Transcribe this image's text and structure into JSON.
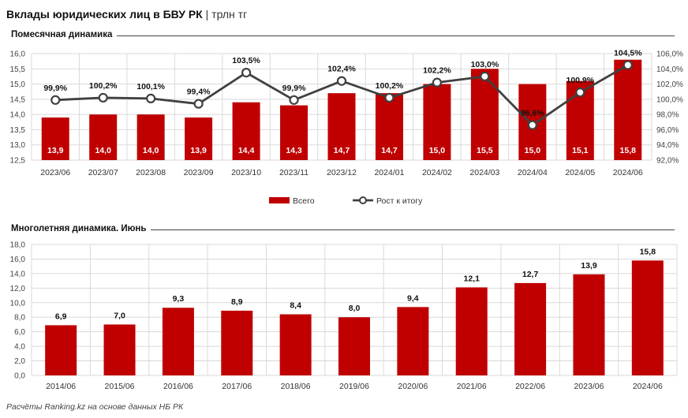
{
  "title": {
    "main": "Вклады юридических лиц в БВУ РК",
    "separator": "|",
    "unit": "трлн тг"
  },
  "footer": "Расчёты Ranking.kz на основе данных НБ РК",
  "colors": {
    "bar": "#C00000",
    "line": "#404040",
    "grid": "#D9D9D9"
  },
  "chart_data": [
    {
      "type": "bar+line",
      "title": "Помесячная динамика",
      "categories": [
        "2023/06",
        "2023/07",
        "2023/08",
        "2023/09",
        "2023/10",
        "2023/11",
        "2023/12",
        "2024/01",
        "2024/02",
        "2024/03",
        "2024/04",
        "2024/05",
        "2024/06"
      ],
      "series": [
        {
          "name": "Всего",
          "type": "bar",
          "axis": "left",
          "values": [
            13.9,
            14.0,
            14.0,
            13.9,
            14.4,
            14.3,
            14.7,
            14.7,
            15.0,
            15.5,
            15.0,
            15.1,
            15.8
          ],
          "labels": [
            "13,9",
            "14,0",
            "14,0",
            "13,9",
            "14,4",
            "14,3",
            "14,7",
            "14,7",
            "15,0",
            "15,5",
            "15,0",
            "15,1",
            "15,8"
          ]
        },
        {
          "name": "Рост к итогу",
          "type": "line",
          "axis": "right",
          "values": [
            99.9,
            100.2,
            100.1,
            99.4,
            103.5,
            99.9,
            102.4,
            100.2,
            102.2,
            103.0,
            96.6,
            100.9,
            104.5
          ],
          "labels": [
            "99,9%",
            "100,2%",
            "100,1%",
            "99,4%",
            "103,5%",
            "99,9%",
            "102,4%",
            "100,2%",
            "102,2%",
            "103,0%",
            "96,6%",
            "100,9%",
            "104,5%"
          ]
        }
      ],
      "ylim_left": [
        12.5,
        16.0
      ],
      "yticks_left": [
        "12,5",
        "13,0",
        "13,5",
        "14,0",
        "14,5",
        "15,0",
        "15,5",
        "16,0"
      ],
      "ylim_right": [
        92.0,
        106.0
      ],
      "yticks_right": [
        "92,0%",
        "94,0%",
        "96,0%",
        "98,0%",
        "100,0%",
        "102,0%",
        "104,0%",
        "106,0%"
      ],
      "legend": [
        "Всего",
        "Рост к итогу"
      ]
    },
    {
      "type": "bar",
      "title": "Многолетняя динамика. Июнь",
      "categories": [
        "2014/06",
        "2015/06",
        "2016/06",
        "2017/06",
        "2018/06",
        "2019/06",
        "2020/06",
        "2021/06",
        "2022/06",
        "2023/06",
        "2024/06"
      ],
      "values": [
        6.9,
        7.0,
        9.3,
        8.9,
        8.4,
        8.0,
        9.4,
        12.1,
        12.7,
        13.9,
        15.8
      ],
      "labels": [
        "6,9",
        "7,0",
        "9,3",
        "8,9",
        "8,4",
        "8,0",
        "9,4",
        "12,1",
        "12,7",
        "13,9",
        "15,8"
      ],
      "ylim": [
        0,
        18
      ],
      "yticks": [
        "0,0",
        "2,0",
        "4,0",
        "6,0",
        "8,0",
        "10,0",
        "12,0",
        "14,0",
        "16,0",
        "18,0"
      ]
    }
  ]
}
